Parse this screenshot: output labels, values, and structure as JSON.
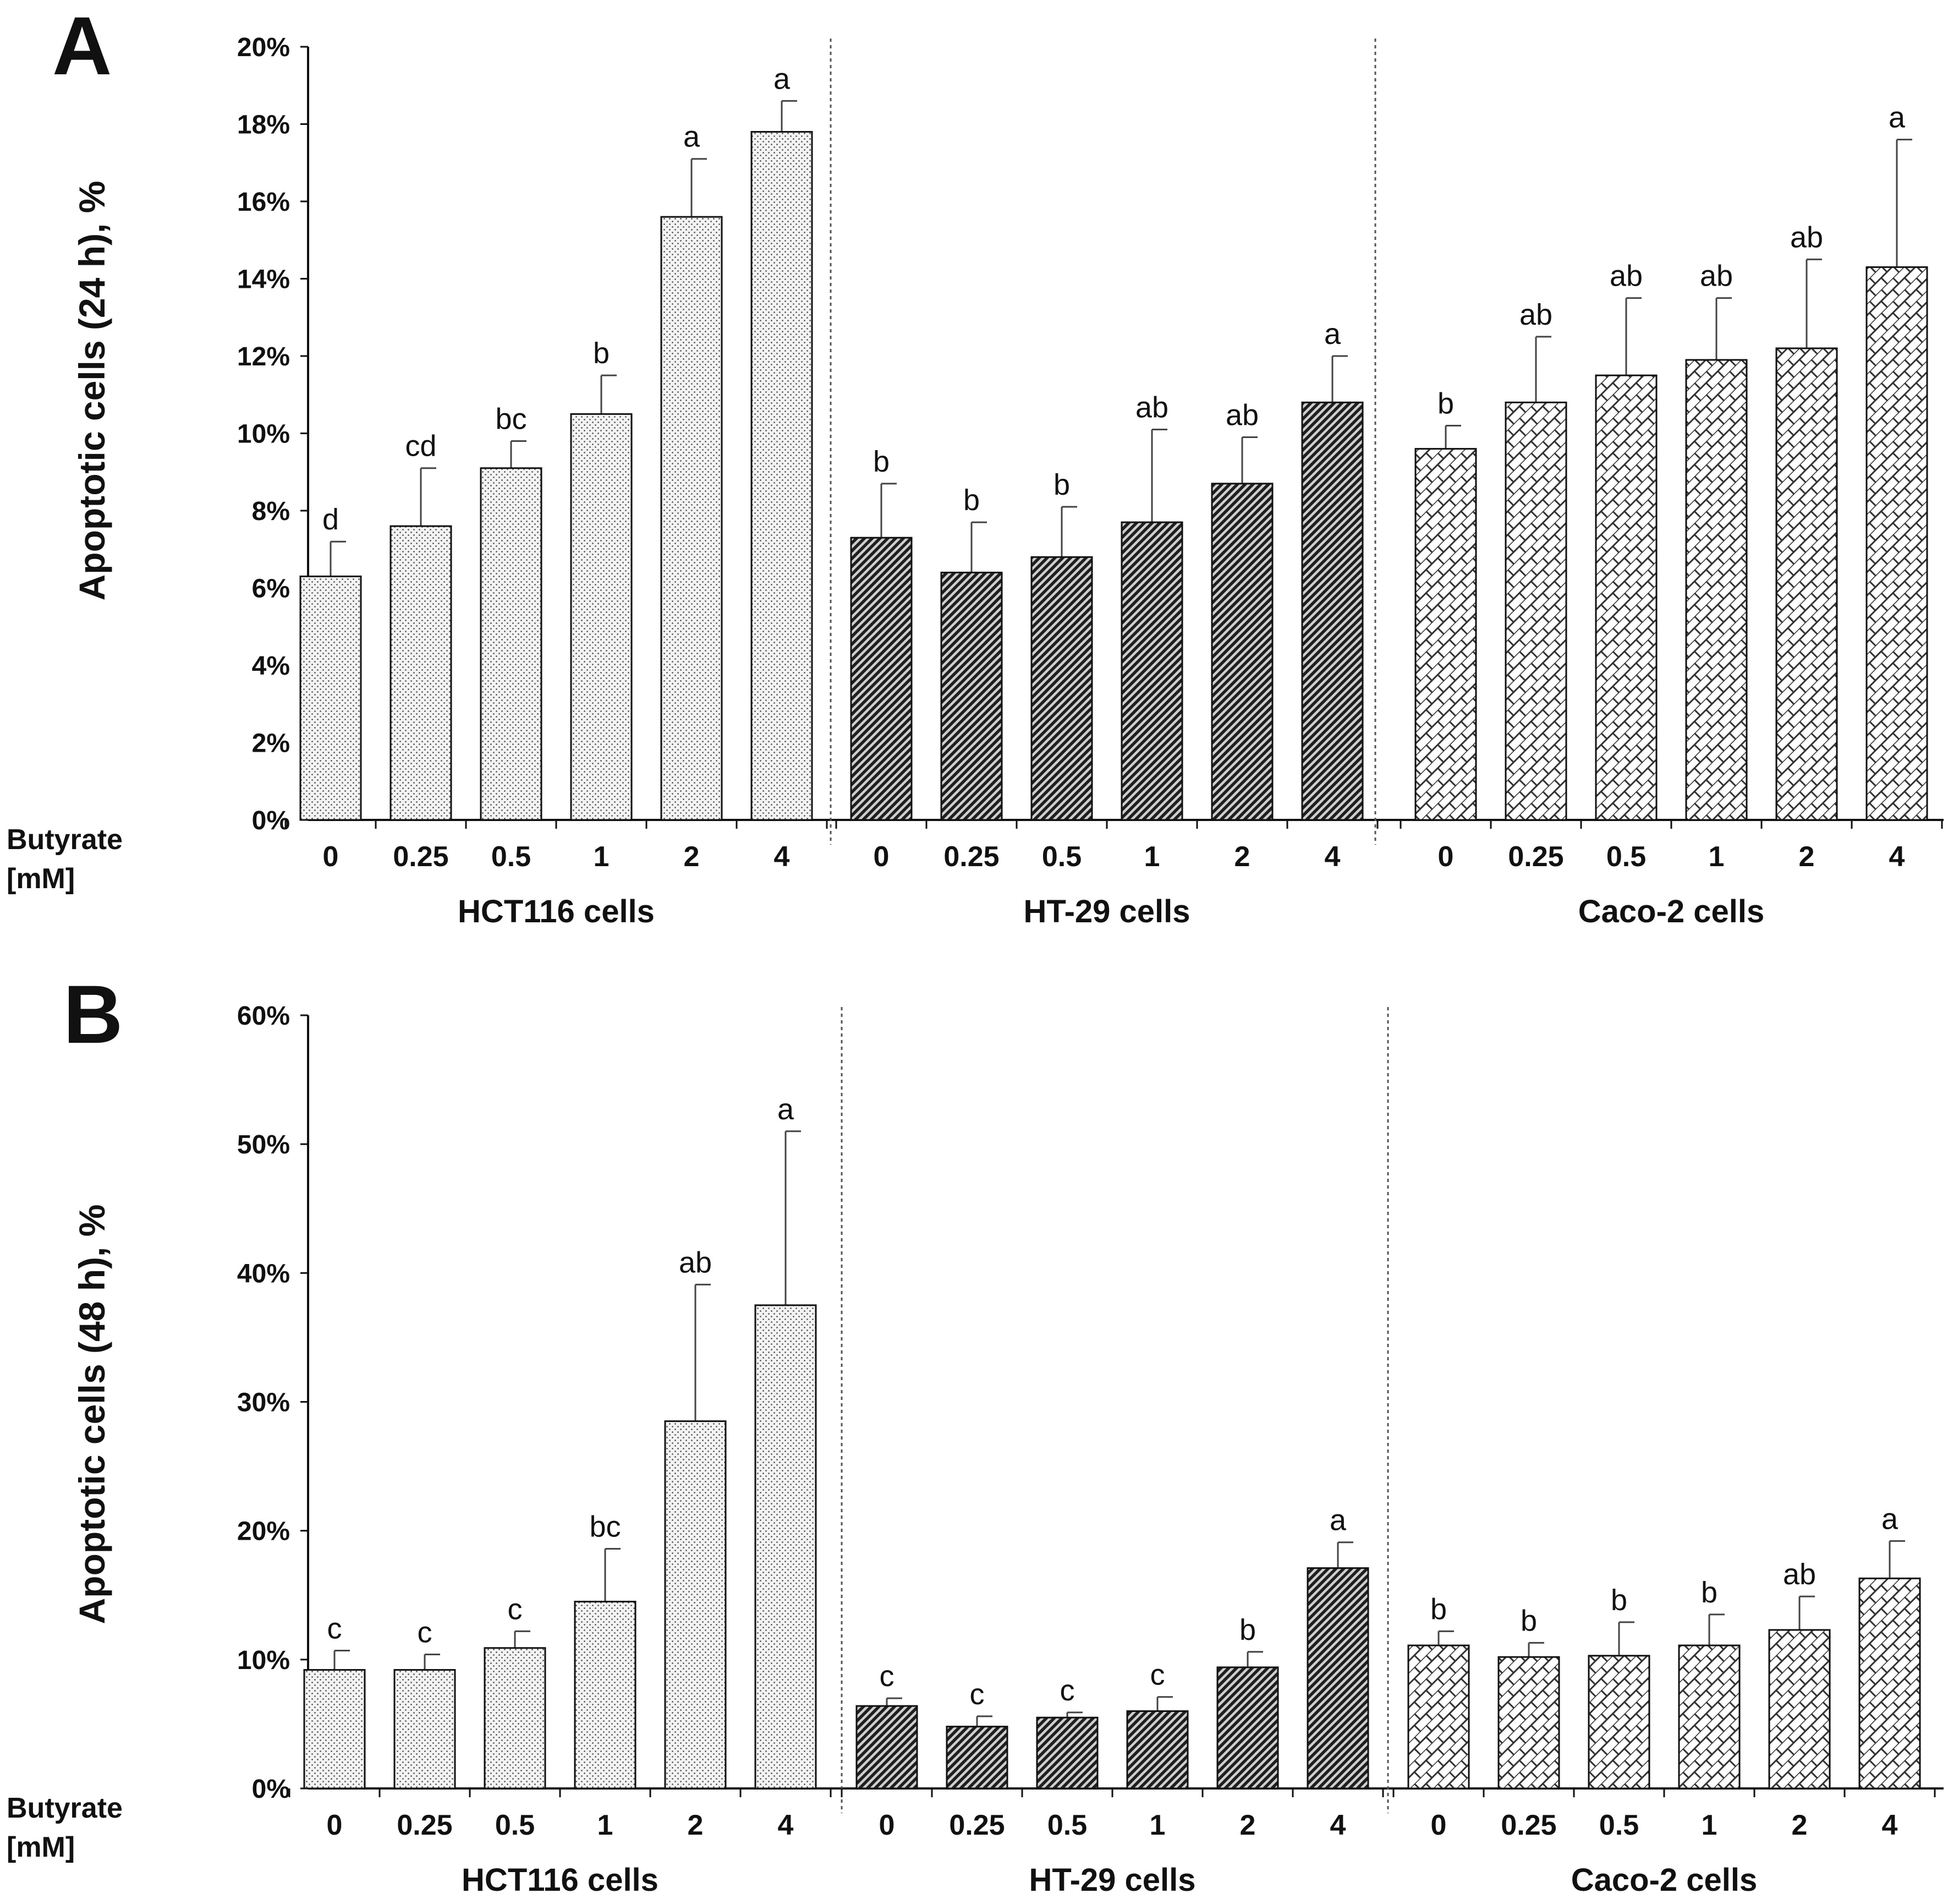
{
  "chart_data": [
    {
      "type": "bar",
      "panel": "A",
      "ylabel": "Apoptotic cells (24 h), %",
      "ylim": [
        0,
        20
      ],
      "yticks": [
        "0%",
        "2%",
        "4%",
        "6%",
        "8%",
        "10%",
        "12%",
        "14%",
        "16%",
        "18%",
        "20%"
      ],
      "xaxis_title": [
        "Butyrate",
        "[mM]"
      ],
      "categories": [
        "0",
        "0.25",
        "0.5",
        "1",
        "2",
        "4"
      ],
      "groups": [
        {
          "name": "HCT116 cells",
          "pattern": "dots",
          "values": [
            6.3,
            7.6,
            9.1,
            10.5,
            15.6,
            17.8
          ],
          "errors": [
            0.9,
            1.5,
            0.7,
            1.0,
            1.5,
            0.8
          ],
          "letters": [
            "d",
            "cd",
            "bc",
            "b",
            "a",
            "a"
          ]
        },
        {
          "name": "HT-29 cells",
          "pattern": "dense",
          "values": [
            7.3,
            6.4,
            6.8,
            7.7,
            8.7,
            10.8
          ],
          "errors": [
            1.4,
            1.3,
            1.3,
            2.4,
            1.2,
            1.2
          ],
          "letters": [
            "b",
            "b",
            "b",
            "ab",
            "ab",
            "a"
          ]
        },
        {
          "name": "Caco-2 cells",
          "pattern": "bricks",
          "values": [
            9.6,
            10.8,
            11.5,
            11.9,
            12.2,
            14.3
          ],
          "errors": [
            0.6,
            1.7,
            2.0,
            1.6,
            2.3,
            3.3
          ],
          "letters": [
            "b",
            "ab",
            "ab",
            "ab",
            "ab",
            "a"
          ]
        }
      ]
    },
    {
      "type": "bar",
      "panel": "B",
      "ylabel": "Apoptotic cells (48 h), %",
      "ylim": [
        0,
        60
      ],
      "yticks": [
        "0%",
        "10%",
        "20%",
        "30%",
        "40%",
        "50%",
        "60%"
      ],
      "xaxis_title": [
        "Butyrate",
        "[mM]"
      ],
      "categories": [
        "0",
        "0.25",
        "0.5",
        "1",
        "2",
        "4"
      ],
      "groups": [
        {
          "name": "HCT116 cells",
          "pattern": "dots",
          "values": [
            9.2,
            9.2,
            10.9,
            14.5,
            28.5,
            37.5
          ],
          "errors": [
            1.5,
            1.2,
            1.3,
            4.1,
            10.6,
            13.5
          ],
          "letters": [
            "c",
            "c",
            "c",
            "bc",
            "ab",
            "a"
          ]
        },
        {
          "name": "HT-29 cells",
          "pattern": "dense",
          "values": [
            6.4,
            4.8,
            5.5,
            6.0,
            9.4,
            17.1
          ],
          "errors": [
            0.6,
            0.8,
            0.4,
            1.1,
            1.2,
            2.0
          ],
          "letters": [
            "c",
            "c",
            "c",
            "c",
            "b",
            "a"
          ]
        },
        {
          "name": "Caco-2 cells",
          "pattern": "bricks",
          "values": [
            11.1,
            10.2,
            10.3,
            11.1,
            12.3,
            16.3
          ],
          "errors": [
            1.1,
            1.1,
            2.6,
            2.4,
            2.6,
            2.9
          ],
          "letters": [
            "b",
            "b",
            "b",
            "b",
            "ab",
            "a"
          ]
        }
      ]
    }
  ]
}
